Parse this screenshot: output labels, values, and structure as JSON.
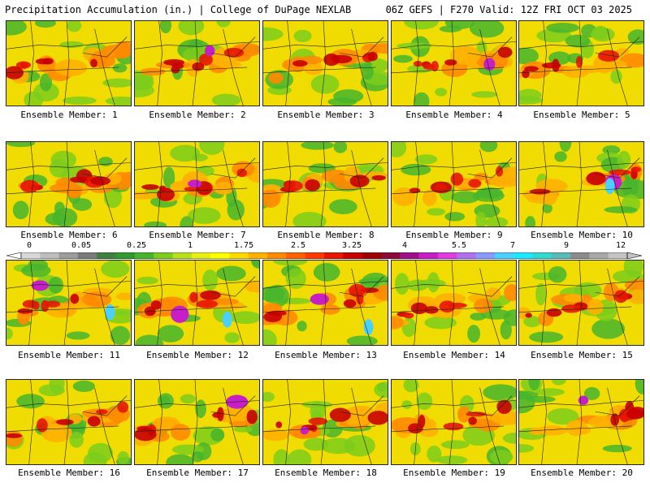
{
  "header": {
    "left": "Precipitation Accumulation (in.) | College of DuPage NEXLAB",
    "right": "06Z GEFS | F270 Valid: 12Z FRI OCT 03 2025"
  },
  "members": [
    {
      "label": "Ensemble Member: 1"
    },
    {
      "label": "Ensemble Member: 2"
    },
    {
      "label": "Ensemble Member: 3"
    },
    {
      "label": "Ensemble Member: 4"
    },
    {
      "label": "Ensemble Member: 5"
    },
    {
      "label": "Ensemble Member: 6"
    },
    {
      "label": "Ensemble Member: 7"
    },
    {
      "label": "Ensemble Member: 8"
    },
    {
      "label": "Ensemble Member: 9"
    },
    {
      "label": "Ensemble Member: 10"
    },
    {
      "label": "Ensemble Member: 11"
    },
    {
      "label": "Ensemble Member: 12"
    },
    {
      "label": "Ensemble Member: 13"
    },
    {
      "label": "Ensemble Member: 14"
    },
    {
      "label": "Ensemble Member: 15"
    },
    {
      "label": "Ensemble Member: 16"
    },
    {
      "label": "Ensemble Member: 17"
    },
    {
      "label": "Ensemble Member: 18"
    },
    {
      "label": "Ensemble Member: 19"
    },
    {
      "label": "Ensemble Member: 20"
    }
  ],
  "colorbar": {
    "labels": [
      "0",
      "0.05",
      "0.25",
      "1",
      "1.75",
      "2.5",
      "3.25",
      "4",
      "5.5",
      "7",
      "9",
      "12"
    ],
    "colors": [
      "#d8d8d8",
      "#bdbdbd",
      "#9c9c9c",
      "#7a7a7a",
      "#3f7f3f",
      "#2f9a2f",
      "#45b52d",
      "#7ccc1c",
      "#b5e01a",
      "#e8ef10",
      "#ffff00",
      "#ffd800",
      "#ffb000",
      "#ff8a00",
      "#ff6000",
      "#ff3a00",
      "#e81500",
      "#c80000",
      "#a00000",
      "#8a0a3a",
      "#a0108a",
      "#c81ec8",
      "#e03ce0",
      "#b070f0",
      "#8a9aff",
      "#4ad0ff",
      "#1ee8ff",
      "#30d8d0",
      "#5abab8",
      "#8c8c8c",
      "#a8a8a8",
      "#c4c4c4"
    ]
  }
}
